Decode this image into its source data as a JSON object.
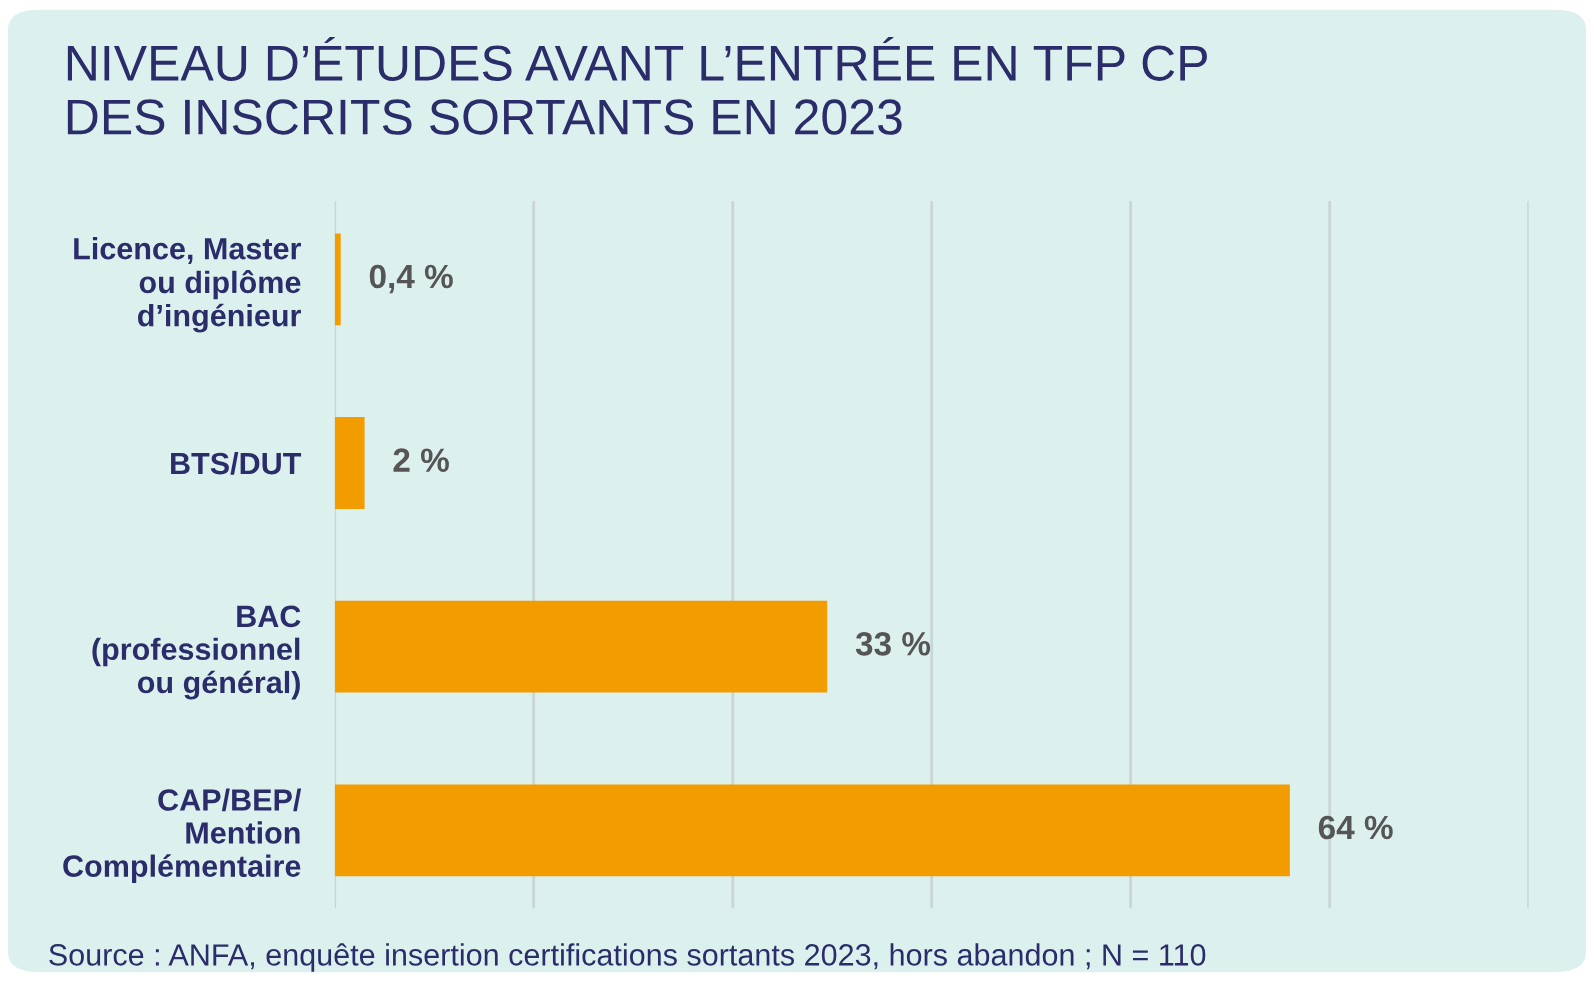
{
  "chart_data": {
    "type": "bar",
    "orientation": "horizontal",
    "title": "NIVEAU D’ÉTUDES AVANT L’ENTRÉE EN TFP CP\nDES INSCRITS SORTANTS EN 2023",
    "categories": [
      "Licence, Master\nou diplôme\nd’ingénieur",
      "BTS/DUT",
      "BAC\n(professionnel\nou général)",
      "CAP/BEP/\nMention\nComplémentaire"
    ],
    "values": [
      0.4,
      2,
      33,
      64
    ],
    "value_labels": [
      "0,4 %",
      "2 %",
      "33 %",
      "64 %"
    ],
    "color": "#f39c00",
    "xlim": [
      0,
      80
    ],
    "xticks": [
      {
        "value": 0,
        "label": null
      },
      {
        "value": 13.33,
        "label": null
      },
      {
        "value": 26.67,
        "label": null
      },
      {
        "value": 40,
        "label": null
      },
      {
        "value": 53.33,
        "label": null
      },
      {
        "value": 66.67,
        "label": null
      },
      {
        "value": 80,
        "label": null
      }
    ],
    "grid": "x",
    "tick_labels": "y",
    "annotations": [
      "Source : ANFA, enquête insertion certifications sortants 2023, hors abandon ; N = 110"
    ]
  }
}
